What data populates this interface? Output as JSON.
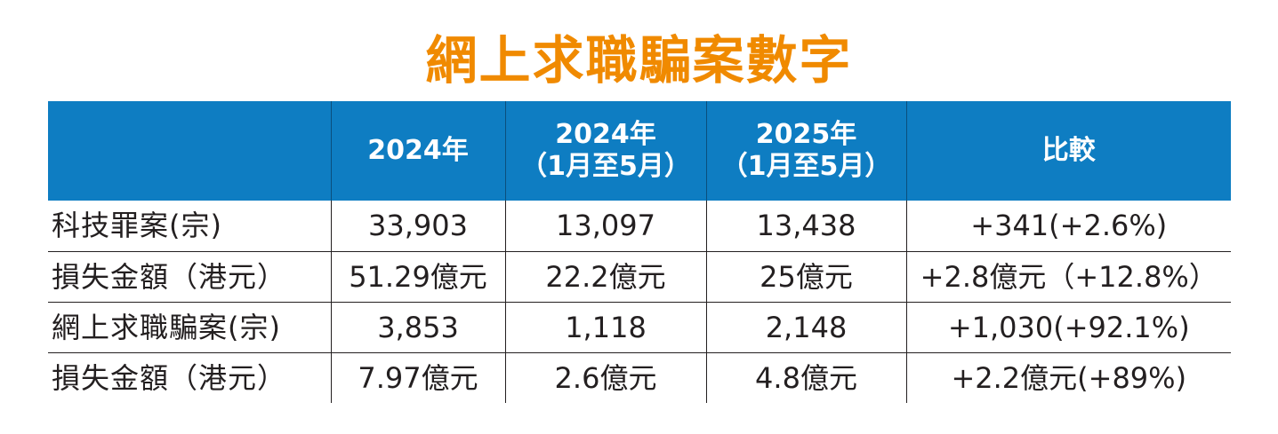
{
  "title": "網上求職騙案數字",
  "colors": {
    "title": "#f08a00",
    "header_bg": "#0e7dc2",
    "header_text": "#ffffff",
    "grid": "#231f20"
  },
  "chart_data": {
    "type": "table",
    "title": "網上求職騙案數字",
    "columns": [
      {
        "line1": "",
        "line2": ""
      },
      {
        "line1": "2024年",
        "line2": ""
      },
      {
        "line1": "2024年",
        "line2": "（1月至5月）"
      },
      {
        "line1": "2025年",
        "line2": "（1月至5月）"
      },
      {
        "line1": "比較",
        "line2": ""
      }
    ],
    "rows": [
      {
        "label": "科技罪案(宗)",
        "cells": [
          "33,903",
          "13,097",
          "13,438",
          "+341(+2.6%)"
        ]
      },
      {
        "label": "損失金額（港元）",
        "cells": [
          "51.29億元",
          "22.2億元",
          "25億元",
          "+2.8億元（+12.8%）"
        ]
      },
      {
        "label": "網上求職騙案(宗)",
        "cells": [
          "3,853",
          "1,118",
          "2,148",
          "+1,030(+92.1%)"
        ]
      },
      {
        "label": "損失金額（港元）",
        "cells": [
          "7.97億元",
          "2.6億元",
          "4.8億元",
          "+2.2億元(+89%)"
        ]
      }
    ]
  }
}
